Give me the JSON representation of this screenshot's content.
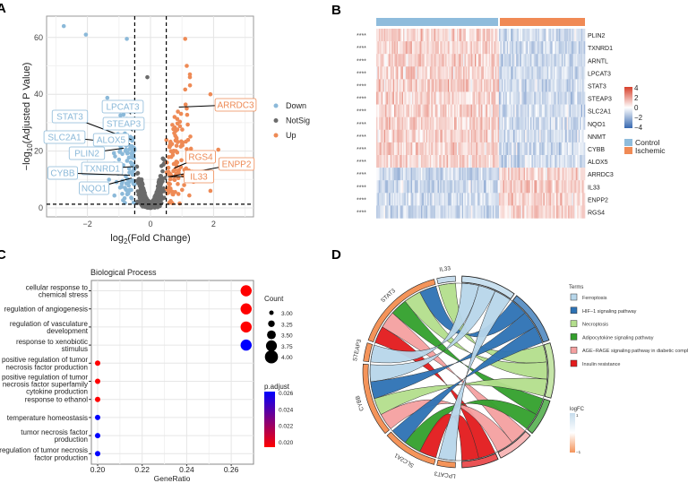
{
  "panels": {
    "a": "A",
    "b": "B",
    "c": "C",
    "d": "D"
  },
  "chart_data": [
    {
      "panel": "A",
      "type": "scatter",
      "xlabel": "log2(Fold Change)",
      "ylabel": "-log10(Adjusted P Value)",
      "xlim": [
        -3.3,
        3.3
      ],
      "ylim": [
        -2,
        67
      ],
      "xticks": [
        -2,
        0,
        2
      ],
      "yticks": [
        0,
        20,
        40,
        60
      ],
      "thresholds": {
        "log2fc": [
          -0.5,
          0.5
        ],
        "neglog10p": 1.3
      },
      "grid": true,
      "legend_position": "right",
      "legend": [
        {
          "label": "Down",
          "color": "#8bb9d9"
        },
        {
          "label": "NotSig",
          "color": "#6b6b6b"
        },
        {
          "label": "Up",
          "color": "#ee8a55"
        }
      ],
      "outliers": [
        {
          "x": -2.75,
          "y": 64,
          "group": "Down"
        },
        {
          "x": -2.05,
          "y": 61,
          "group": "Down"
        },
        {
          "x": -0.75,
          "y": 59.5,
          "group": "Down"
        },
        {
          "x": 1.1,
          "y": 59.5,
          "group": "Up"
        },
        {
          "x": 1.15,
          "y": 50,
          "group": "Up"
        },
        {
          "x": 1.25,
          "y": 47,
          "group": "Up"
        },
        {
          "x": 1.25,
          "y": 46,
          "group": "Up"
        },
        {
          "x": -0.1,
          "y": 46,
          "group": "NotSig"
        },
        {
          "x": 2.15,
          "y": 20.5,
          "group": "Up"
        },
        {
          "x": 1.9,
          "y": 6,
          "group": "Up"
        },
        {
          "x": 1.9,
          "y": 40,
          "group": "Up"
        }
      ],
      "labeled_genes": [
        {
          "gene": "LPCAT3",
          "x": -0.62,
          "y": 33,
          "group": "Down"
        },
        {
          "gene": "STAT3",
          "x": -0.6,
          "y": 24,
          "group": "Down"
        },
        {
          "gene": "STEAP3",
          "x": -0.57,
          "y": 27,
          "group": "Down"
        },
        {
          "gene": "SLC2A1",
          "x": -0.65,
          "y": 22.5,
          "group": "Down"
        },
        {
          "gene": "ALOX5",
          "x": -0.7,
          "y": 22,
          "group": "Down"
        },
        {
          "gene": "PLIN2",
          "x": -0.85,
          "y": 21,
          "group": "Down"
        },
        {
          "gene": "TXNRD1",
          "x": -0.55,
          "y": 14.5,
          "group": "Down"
        },
        {
          "gene": "CYBB",
          "x": -0.65,
          "y": 11.5,
          "group": "Down"
        },
        {
          "gene": "NQO1",
          "x": -0.6,
          "y": 10.5,
          "group": "Down"
        },
        {
          "gene": "ARRDC3",
          "x": 0.9,
          "y": 35.5,
          "group": "Up"
        },
        {
          "gene": "RGS4",
          "x": 0.75,
          "y": 14,
          "group": "Up"
        },
        {
          "gene": "ENPP2",
          "x": 0.6,
          "y": 11,
          "group": "Up"
        },
        {
          "gene": "IL33",
          "x": 0.55,
          "y": 11,
          "group": "Up"
        }
      ]
    },
    {
      "panel": "B",
      "type": "heatmap",
      "genes": [
        "PLIN2",
        "TXNRD1",
        "ARNTL",
        "LPCAT3",
        "STAT3",
        "STEAP3",
        "SLC2A1",
        "NQO1",
        "NNMT",
        "CYBB",
        "ALOX5",
        "ARRDC3",
        "IL33",
        "ENPP2",
        "RGS4"
      ],
      "significance": "****",
      "higher_in": [
        "Control",
        "Control",
        "Control",
        "Control",
        "Control",
        "Control",
        "Control",
        "Control",
        "Control",
        "Control",
        "Control",
        "Ischemic",
        "Ischemic",
        "Ischemic",
        "Ischemic"
      ],
      "groups": [
        {
          "label": "Control",
          "color": "#8fbcdc"
        },
        {
          "label": "Ischemic",
          "color": "#f08a55"
        }
      ],
      "scale": {
        "ticks": [
          4,
          2,
          0,
          -2,
          -4
        ],
        "tick_labels": [
          "4",
          "2",
          "0",
          "−2",
          "−4"
        ],
        "high": "#d7402b",
        "mid": "#ffffff",
        "low": "#3768b0"
      }
    },
    {
      "panel": "C",
      "type": "scatter",
      "title": "Biological Process",
      "xlabel": "GeneRatio",
      "xlim": [
        0.197,
        0.27
      ],
      "xticks": [
        0.2,
        0.22,
        0.24,
        0.26
      ],
      "terms": [
        "cellular response to\nchemical stress",
        "regulation of angiogenesis",
        "regulation of vasculature\ndevelopment",
        "response to xenobiotic\nstimulus",
        "positive regulation of tumor\nnecrosis factor production",
        "positive regulation of tumor\nnecrosis factor superfamily\ncytokine production",
        "response to ethanol",
        "temperature homeostasis",
        "tumor necrosis factor\nproduction",
        "regulation of tumor necrosis\nfactor production"
      ],
      "gene_ratio": [
        0.2667,
        0.2667,
        0.2667,
        0.2667,
        0.2,
        0.2,
        0.2,
        0.2,
        0.2,
        0.2
      ],
      "count": [
        4,
        4,
        4,
        4,
        3,
        3,
        3,
        3,
        3,
        3
      ],
      "p_adjust": [
        0.0195,
        0.0195,
        0.0195,
        0.026,
        0.0195,
        0.0195,
        0.0195,
        0.026,
        0.026,
        0.026
      ],
      "count_legend": {
        "title": "Count",
        "values": [
          "3.00",
          "3.25",
          "3.50",
          "3.75",
          "4.00"
        ]
      },
      "padj_legend": {
        "title": "p.adjust",
        "ticks": [
          "0.026",
          "0.024",
          "0.022",
          "0.020"
        ],
        "low": "#ff0000",
        "high": "#0000ff"
      }
    },
    {
      "panel": "D",
      "type": "chord",
      "genes": [
        {
          "gene": "IL33",
          "logFC": 1
        },
        {
          "gene": "STAT3",
          "logFC": -1
        },
        {
          "gene": "STEAP3",
          "logFC": -1
        },
        {
          "gene": "CYBB",
          "logFC": -1
        },
        {
          "gene": "SLC2A1",
          "logFC": -1
        },
        {
          "gene": "LPCAT3",
          "logFC": -1
        }
      ],
      "terms": [
        {
          "term": "Ferroptosis",
          "color": "#b7d6ea"
        },
        {
          "term": "HIF−1 signaling pathway",
          "color": "#2d72b4"
        },
        {
          "term": "Necroptosis",
          "color": "#b3de8c"
        },
        {
          "term": "Adipocytokine signaling pathway",
          "color": "#33a02c"
        },
        {
          "term": "AGE−RAGE signaling pathway in diabetic complicat",
          "color": "#f4a0a0"
        },
        {
          "term": "Insulin resistance",
          "color": "#e31a1c"
        }
      ],
      "links": [
        [
          "IL33",
          "Necroptosis"
        ],
        [
          "STAT3",
          "HIF−1 signaling pathway"
        ],
        [
          "STAT3",
          "Necroptosis"
        ],
        [
          "STAT3",
          "Adipocytokine signaling pathway"
        ],
        [
          "STAT3",
          "AGE−RAGE signaling pathway in diabetic complicat"
        ],
        [
          "STAT3",
          "Insulin resistance"
        ],
        [
          "STEAP3",
          "Ferroptosis"
        ],
        [
          "CYBB",
          "Ferroptosis"
        ],
        [
          "CYBB",
          "HIF−1 signaling pathway"
        ],
        [
          "CYBB",
          "Necroptosis"
        ],
        [
          "CYBB",
          "AGE−RAGE signaling pathway in diabetic complicat"
        ],
        [
          "SLC2A1",
          "HIF−1 signaling pathway"
        ],
        [
          "SLC2A1",
          "Adipocytokine signaling pathway"
        ],
        [
          "SLC2A1",
          "Insulin resistance"
        ],
        [
          "LPCAT3",
          "Ferroptosis"
        ]
      ],
      "legend_title": "Terms",
      "logfc_legend": {
        "title": "logFC",
        "ticks": [
          "1",
          "−1"
        ],
        "high": "#c6dcec",
        "mid": "#ffffff",
        "low": "#f4945a"
      }
    }
  ]
}
